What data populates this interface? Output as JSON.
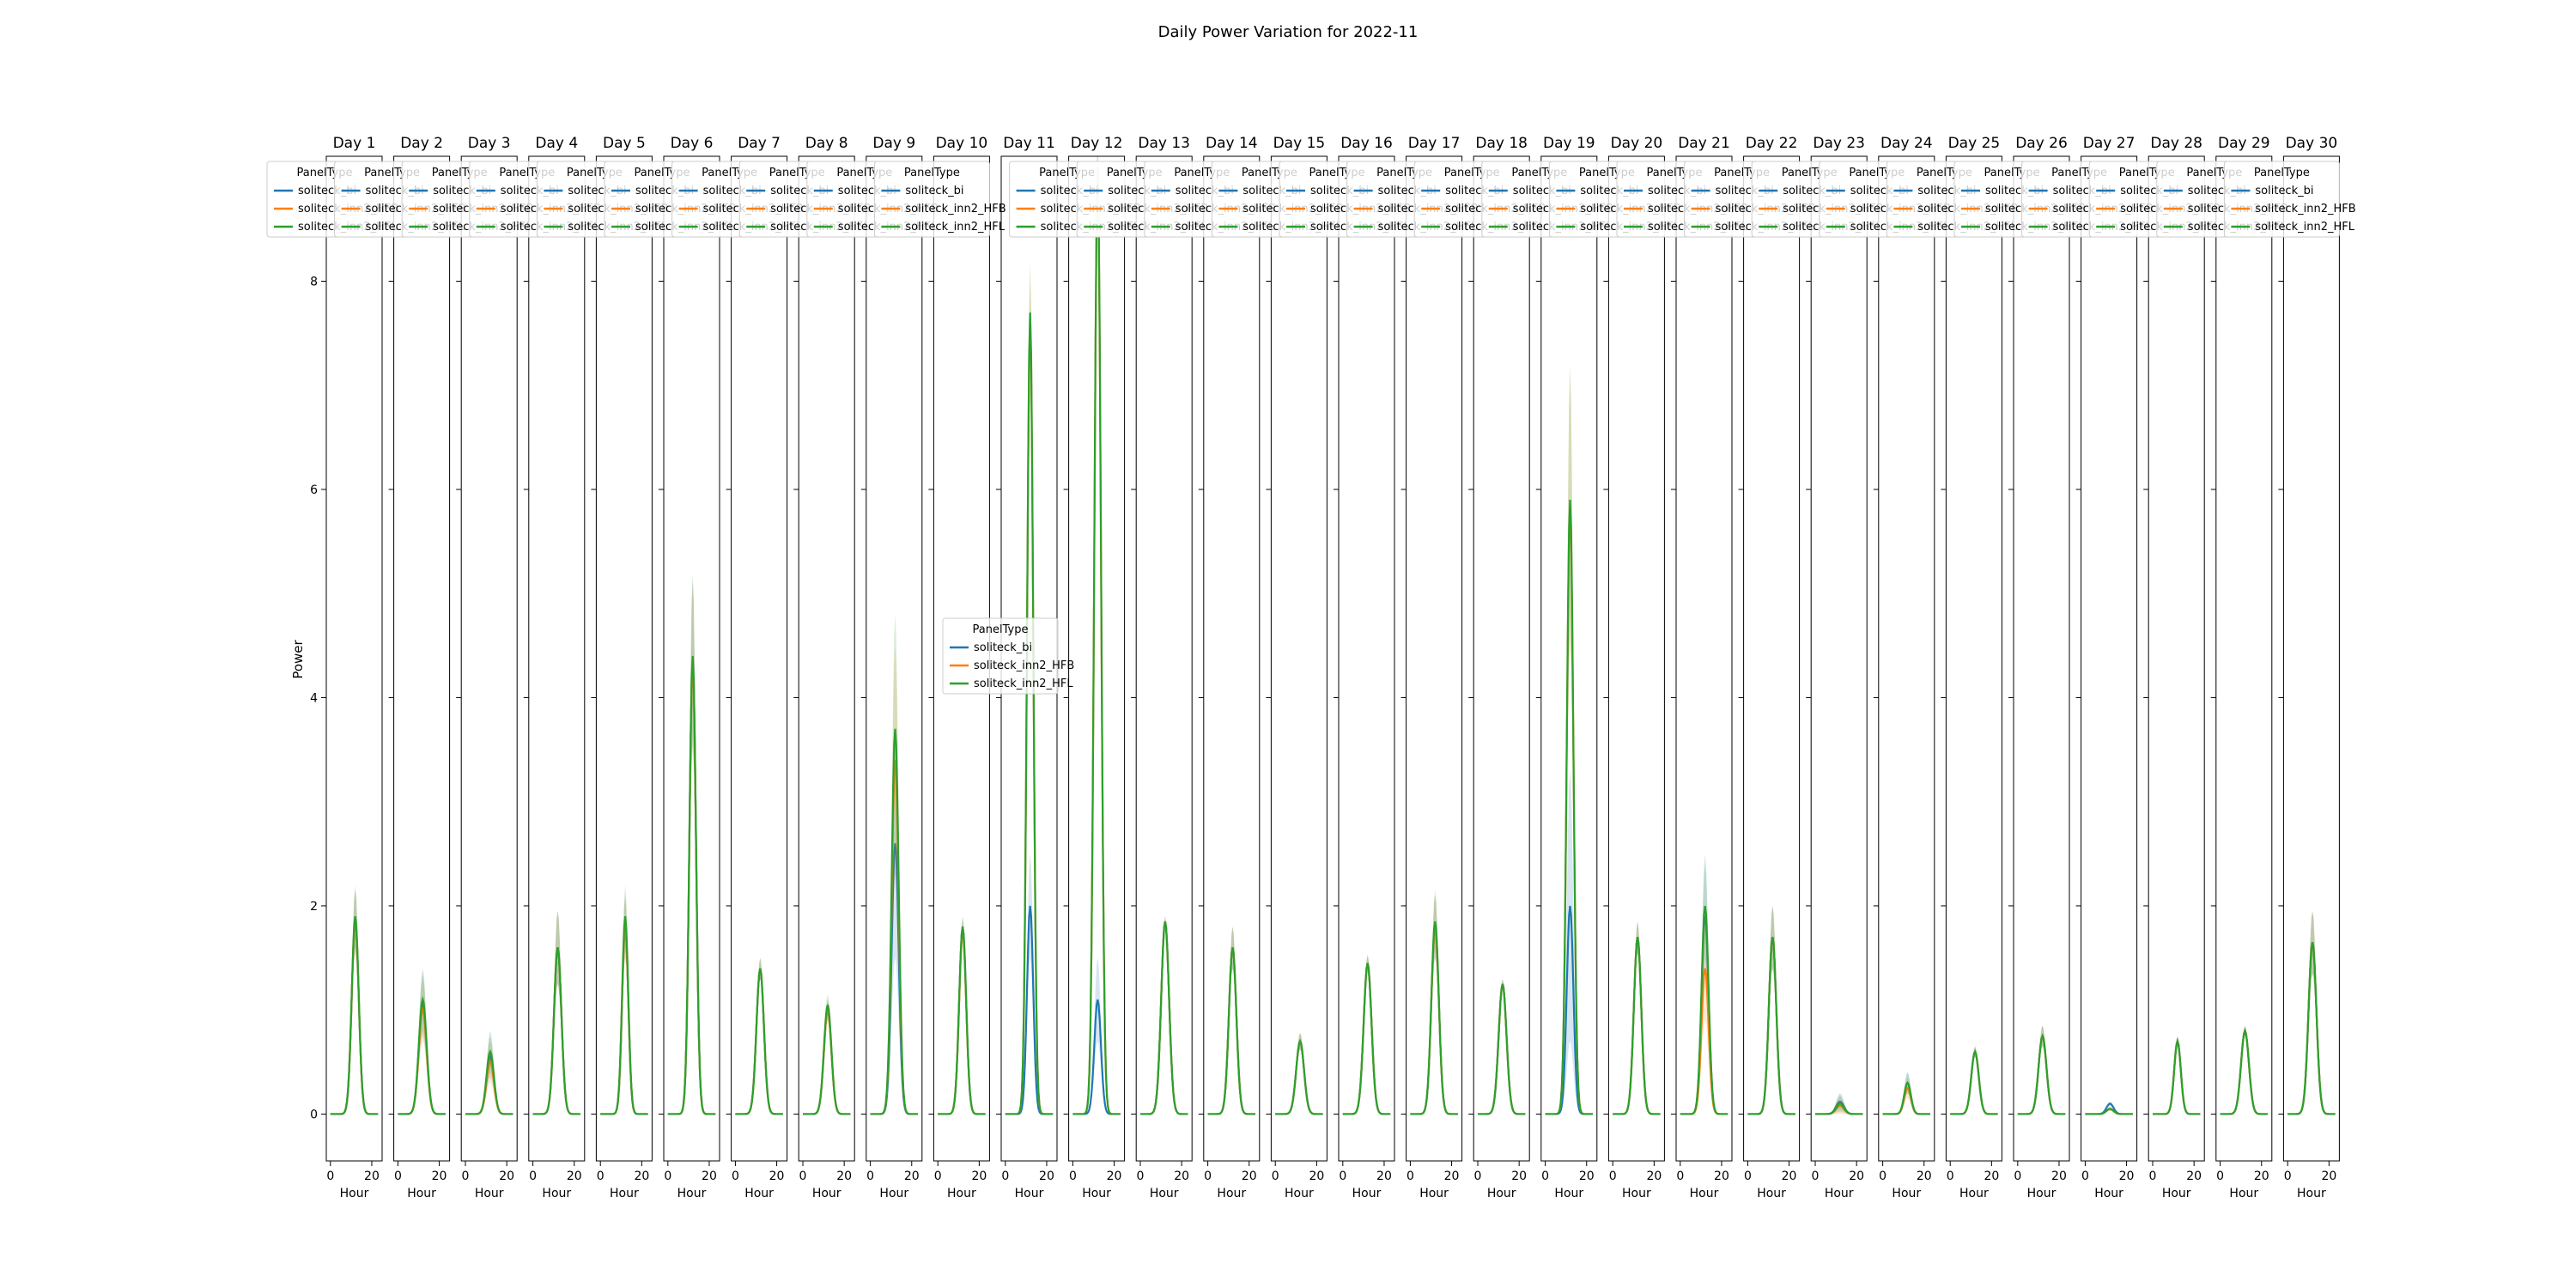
{
  "figure_title": "Daily Power Variation for 2022-11",
  "chart_data": {
    "type": "line",
    "title": "Daily Power Variation for 2022-11",
    "xlabel": "Hour",
    "ylabel": "Power",
    "xlim": [
      -2,
      25
    ],
    "ylim": [
      -0.45,
      9.2
    ],
    "x_ticks": [
      0,
      20
    ],
    "y_ticks": [
      0,
      2,
      4,
      6,
      8
    ],
    "legend_title": "PanelType",
    "series_names": [
      "soliteck_bi",
      "soliteck_inn2_HFB",
      "soliteck_inn2_HFL"
    ],
    "series_colors": [
      "#1f77b4",
      "#ff7f0e",
      "#2ca02c"
    ],
    "confidence_band": true,
    "days": [
      {
        "label": "Day 1",
        "peak_hour": 12,
        "width": 1.7,
        "peak": [
          1.85,
          1.85,
          1.9
        ],
        "ci": 0.3
      },
      {
        "label": "Day 2",
        "peak_hour": 12,
        "width": 1.9,
        "peak": [
          1.05,
          1.0,
          1.1
        ],
        "ci": 0.3
      },
      {
        "label": "Day 3",
        "peak_hour": 12,
        "width": 1.8,
        "peak": [
          0.55,
          0.5,
          0.6
        ],
        "ci": 0.2
      },
      {
        "label": "Day 4",
        "peak_hour": 12,
        "width": 1.8,
        "peak": [
          1.6,
          1.6,
          1.6
        ],
        "ci": 0.35
      },
      {
        "label": "Day 5",
        "peak_hour": 12,
        "width": 1.5,
        "peak": [
          1.8,
          1.8,
          1.9
        ],
        "ci": 0.3
      },
      {
        "label": "Day 6",
        "peak_hour": 12,
        "width": 1.6,
        "peak": [
          4.35,
          4.3,
          4.4
        ],
        "ci": 0.8
      },
      {
        "label": "Day 7",
        "peak_hour": 12,
        "width": 1.8,
        "peak": [
          1.4,
          1.4,
          1.4
        ],
        "ci": 0.1
      },
      {
        "label": "Day 8",
        "peak_hour": 12,
        "width": 1.8,
        "peak": [
          1.0,
          1.0,
          1.05
        ],
        "ci": 0.1
      },
      {
        "label": "Day 9",
        "peak_hour": 12,
        "width": 1.7,
        "peak": [
          2.6,
          3.4,
          3.7
        ],
        "ci": 1.1
      },
      {
        "label": "Day 10",
        "peak_hour": 12,
        "width": 1.7,
        "peak": [
          1.8,
          1.75,
          1.8
        ],
        "ci": 0.1
      },
      {
        "label": "Day 11",
        "peak_hour": 12,
        "width": 1.5,
        "peak": [
          2.0,
          7.6,
          7.7
        ],
        "ci": 0.5
      },
      {
        "label": "Day 12",
        "peak_hour": 12,
        "width": 1.6,
        "peak": [
          1.1,
          9.0,
          9.1
        ],
        "ci": 0.4
      },
      {
        "label": "Day 13",
        "peak_hour": 12,
        "width": 1.9,
        "peak": [
          1.85,
          1.85,
          1.85
        ],
        "ci": 0.05
      },
      {
        "label": "Day 14",
        "peak_hour": 12,
        "width": 1.8,
        "peak": [
          1.6,
          1.6,
          1.6
        ],
        "ci": 0.2
      },
      {
        "label": "Day 15",
        "peak_hour": 12,
        "width": 1.9,
        "peak": [
          0.7,
          0.7,
          0.7
        ],
        "ci": 0.08
      },
      {
        "label": "Day 16",
        "peak_hour": 12,
        "width": 1.9,
        "peak": [
          1.45,
          1.45,
          1.45
        ],
        "ci": 0.08
      },
      {
        "label": "Day 17",
        "peak_hour": 12,
        "width": 1.8,
        "peak": [
          1.8,
          1.8,
          1.85
        ],
        "ci": 0.3
      },
      {
        "label": "Day 18",
        "peak_hour": 12,
        "width": 1.9,
        "peak": [
          1.25,
          1.25,
          1.25
        ],
        "ci": 0.05
      },
      {
        "label": "Day 19",
        "peak_hour": 12,
        "width": 1.6,
        "peak": [
          2.0,
          5.8,
          5.9
        ],
        "ci": 1.3
      },
      {
        "label": "Day 20",
        "peak_hour": 12,
        "width": 1.8,
        "peak": [
          1.7,
          1.7,
          1.7
        ],
        "ci": 0.15
      },
      {
        "label": "Day 21",
        "peak_hour": 12,
        "width": 1.7,
        "peak": [
          1.9,
          1.4,
          2.0
        ],
        "ci": 0.5
      },
      {
        "label": "Day 22",
        "peak_hour": 12,
        "width": 1.8,
        "peak": [
          1.7,
          1.7,
          1.7
        ],
        "ci": 0.3
      },
      {
        "label": "Day 23",
        "peak_hour": 12,
        "width": 1.9,
        "peak": [
          0.12,
          0.08,
          0.1
        ],
        "ci": 0.08
      },
      {
        "label": "Day 24",
        "peak_hour": 12,
        "width": 1.6,
        "peak": [
          0.3,
          0.25,
          0.3
        ],
        "ci": 0.1
      },
      {
        "label": "Day 25",
        "peak_hour": 12,
        "width": 1.8,
        "peak": [
          0.6,
          0.6,
          0.6
        ],
        "ci": 0.05
      },
      {
        "label": "Day 26",
        "peak_hour": 12,
        "width": 1.9,
        "peak": [
          0.75,
          0.75,
          0.75
        ],
        "ci": 0.1
      },
      {
        "label": "Day 27",
        "peak_hour": 12,
        "width": 1.7,
        "peak": [
          0.1,
          0.05,
          0.05
        ],
        "ci": 0.02
      },
      {
        "label": "Day 28",
        "peak_hour": 12,
        "width": 1.6,
        "peak": [
          0.7,
          0.7,
          0.7
        ],
        "ci": 0.05
      },
      {
        "label": "Day 29",
        "peak_hour": 12,
        "width": 1.9,
        "peak": [
          0.8,
          0.8,
          0.8
        ],
        "ci": 0.05
      },
      {
        "label": "Day 30",
        "peak_hour": 12,
        "width": 1.9,
        "peak": [
          1.65,
          1.65,
          1.65
        ],
        "ci": 0.3
      }
    ]
  }
}
